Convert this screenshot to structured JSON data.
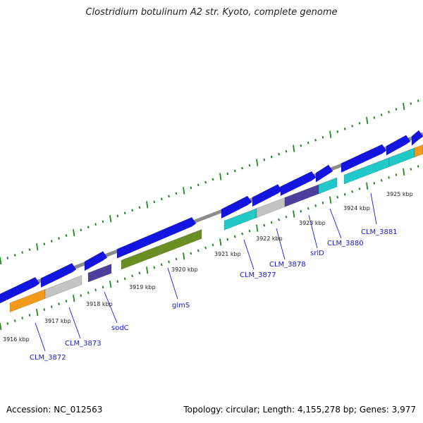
{
  "title": "Clostridium botulinum A2 str. Kyoto, complete genome",
  "footer": {
    "accession": "Accession: NC_012563",
    "summary": "Topology: circular; Length: 4,155,278 bp; Genes: 3,977"
  },
  "colors": {
    "backbone": "#8c8c8c",
    "tick": "#1e8a1e",
    "label": "#1a1acc",
    "leader": "#1a1acc",
    "cds_forward": "#1414e0",
    "gene_orange": "#f39a1a",
    "gene_grey": "#c4c4c4",
    "gene_navy": "#4a3f9a",
    "gene_green": "#6b8e23",
    "gene_cyan": "#20c8c8"
  },
  "scale_labels": [
    "3916 kbp",
    "3917 kbp",
    "3918 kbp",
    "3919 kbp",
    "3920 kbp",
    "3921 kbp",
    "3922 kbp",
    "3923 kbp",
    "3924 kbp",
    "3925 kbp"
  ],
  "gene_labels": [
    "CLM_3872",
    "CLM_3873",
    "sodC",
    "glmS",
    "CLM_3877",
    "CLM_3878",
    "srlD",
    "CLM_3880",
    "CLM_3881"
  ]
}
